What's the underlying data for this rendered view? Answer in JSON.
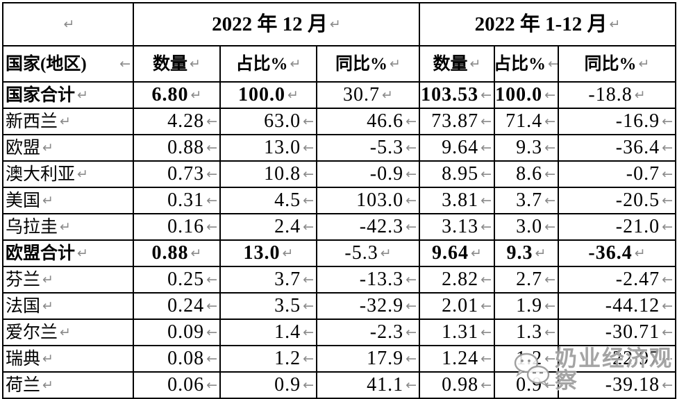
{
  "colors": {
    "border": "#000000",
    "marker_gray": "#8a8a8a",
    "watermark_gray": "#949494"
  },
  "table": {
    "corner_marker": "↵",
    "period_headers": [
      {
        "label": "2022 年 12 月",
        "marker": "↵"
      },
      {
        "label": "2022 年 1-12 月",
        "marker": "↵"
      }
    ],
    "columns": [
      {
        "label": "国家(地区)",
        "marker": "←"
      },
      {
        "label": "数量",
        "marker": "↵"
      },
      {
        "label": "占比%",
        "marker": "↵"
      },
      {
        "label": "同比%",
        "marker": "↵"
      },
      {
        "label": "数量",
        "marker": "↵"
      },
      {
        "label": "占比%",
        "marker": "←"
      },
      {
        "label": "同比%",
        "marker": "↵"
      }
    ],
    "rows": [
      {
        "label": "国家合计",
        "bold": true,
        "cells": [
          {
            "v": "6.80",
            "align": "center",
            "bold": true
          },
          {
            "v": "100.0",
            "align": "center",
            "bold": true
          },
          {
            "v": "30.7",
            "align": "center",
            "bold": false
          },
          {
            "v": "103.53",
            "align": "right",
            "bold": true
          },
          {
            "v": "100.0",
            "align": "right",
            "bold": true
          },
          {
            "v": "-18.8",
            "align": "center",
            "bold": false
          }
        ]
      },
      {
        "label": "新西兰",
        "bold": false,
        "cells": [
          {
            "v": "4.28",
            "align": "right",
            "bold": false
          },
          {
            "v": "63.0",
            "align": "right",
            "bold": false
          },
          {
            "v": "46.6",
            "align": "right",
            "bold": false
          },
          {
            "v": "73.87",
            "align": "right",
            "bold": false
          },
          {
            "v": "71.4",
            "align": "right",
            "bold": false
          },
          {
            "v": "-16.9",
            "align": "right",
            "bold": false
          }
        ]
      },
      {
        "label": "欧盟",
        "bold": false,
        "cells": [
          {
            "v": "0.88",
            "align": "right",
            "bold": false
          },
          {
            "v": "13.0",
            "align": "right",
            "bold": false
          },
          {
            "v": "-5.3",
            "align": "right",
            "bold": false
          },
          {
            "v": "9.64",
            "align": "right",
            "bold": false
          },
          {
            "v": "9.3",
            "align": "right",
            "bold": false
          },
          {
            "v": "-36.4",
            "align": "right",
            "bold": false
          }
        ]
      },
      {
        "label": "澳大利亚",
        "bold": false,
        "cells": [
          {
            "v": "0.73",
            "align": "right",
            "bold": false
          },
          {
            "v": "10.8",
            "align": "right",
            "bold": false
          },
          {
            "v": "-0.9",
            "align": "right",
            "bold": false
          },
          {
            "v": "8.95",
            "align": "right",
            "bold": false
          },
          {
            "v": "8.6",
            "align": "right",
            "bold": false
          },
          {
            "v": "-0.7",
            "align": "right",
            "bold": false
          }
        ]
      },
      {
        "label": "美国",
        "bold": false,
        "cells": [
          {
            "v": "0.31",
            "align": "right",
            "bold": false
          },
          {
            "v": "4.5",
            "align": "right",
            "bold": false
          },
          {
            "v": "103.0",
            "align": "right",
            "bold": false
          },
          {
            "v": "3.81",
            "align": "right",
            "bold": false
          },
          {
            "v": "3.7",
            "align": "right",
            "bold": false
          },
          {
            "v": "-20.5",
            "align": "right",
            "bold": false
          }
        ]
      },
      {
        "label": "乌拉圭",
        "bold": false,
        "cells": [
          {
            "v": "0.16",
            "align": "right",
            "bold": false
          },
          {
            "v": "2.4",
            "align": "right",
            "bold": false
          },
          {
            "v": "-42.3",
            "align": "right",
            "bold": false
          },
          {
            "v": "3.13",
            "align": "right",
            "bold": false
          },
          {
            "v": "3.0",
            "align": "right",
            "bold": false
          },
          {
            "v": "-21.0",
            "align": "right",
            "bold": false
          }
        ]
      },
      {
        "label": "欧盟合计",
        "bold": true,
        "cells": [
          {
            "v": "0.88",
            "align": "center",
            "bold": true
          },
          {
            "v": "13.0",
            "align": "center",
            "bold": true
          },
          {
            "v": "-5.3",
            "align": "center",
            "bold": false
          },
          {
            "v": "9.64",
            "align": "center",
            "bold": true
          },
          {
            "v": "9.3",
            "align": "center",
            "bold": true
          },
          {
            "v": "-36.4",
            "align": "center",
            "bold": true
          }
        ]
      },
      {
        "label": "芬兰",
        "bold": false,
        "cells": [
          {
            "v": "0.25",
            "align": "right",
            "bold": false
          },
          {
            "v": "3.7",
            "align": "right",
            "bold": false
          },
          {
            "v": "-13.3",
            "align": "right",
            "bold": false
          },
          {
            "v": "2.82",
            "align": "right",
            "bold": false
          },
          {
            "v": "2.7",
            "align": "right",
            "bold": false
          },
          {
            "v": "-2.47",
            "align": "right",
            "bold": false
          }
        ]
      },
      {
        "label": "法国",
        "bold": false,
        "cells": [
          {
            "v": "0.24",
            "align": "right",
            "bold": false
          },
          {
            "v": "3.5",
            "align": "right",
            "bold": false
          },
          {
            "v": "-32.9",
            "align": "right",
            "bold": false
          },
          {
            "v": "2.01",
            "align": "right",
            "bold": false
          },
          {
            "v": "1.9",
            "align": "right",
            "bold": false
          },
          {
            "v": "-44.12",
            "align": "right",
            "bold": false
          }
        ]
      },
      {
        "label": "爱尔兰",
        "bold": false,
        "cells": [
          {
            "v": "0.09",
            "align": "right",
            "bold": false
          },
          {
            "v": "1.4",
            "align": "right",
            "bold": false
          },
          {
            "v": "-2.3",
            "align": "right",
            "bold": false
          },
          {
            "v": "1.31",
            "align": "right",
            "bold": false
          },
          {
            "v": "1.3",
            "align": "right",
            "bold": false
          },
          {
            "v": "-30.71",
            "align": "right",
            "bold": false
          }
        ]
      },
      {
        "label": "瑞典",
        "bold": false,
        "cells": [
          {
            "v": "0.08",
            "align": "right",
            "bold": false
          },
          {
            "v": "1.2",
            "align": "right",
            "bold": false
          },
          {
            "v": "17.9",
            "align": "right",
            "bold": false
          },
          {
            "v": "1.24",
            "align": "right",
            "bold": false
          },
          {
            "v": "1.2",
            "align": "right",
            "bold": false
          },
          {
            "v": "-22.97",
            "align": "right",
            "bold": false
          }
        ]
      },
      {
        "label": "荷兰",
        "bold": false,
        "cells": [
          {
            "v": "0.06",
            "align": "right",
            "bold": false
          },
          {
            "v": "0.9",
            "align": "right",
            "bold": false
          },
          {
            "v": "41.1",
            "align": "right",
            "bold": false
          },
          {
            "v": "0.98",
            "align": "right",
            "bold": false
          },
          {
            "v": "0.9",
            "align": "right",
            "bold": false
          },
          {
            "v": "-39.18",
            "align": "right",
            "bold": false
          }
        ]
      }
    ]
  },
  "watermark": {
    "text": "奶业经济观察",
    "icon": "wechat-logo"
  }
}
